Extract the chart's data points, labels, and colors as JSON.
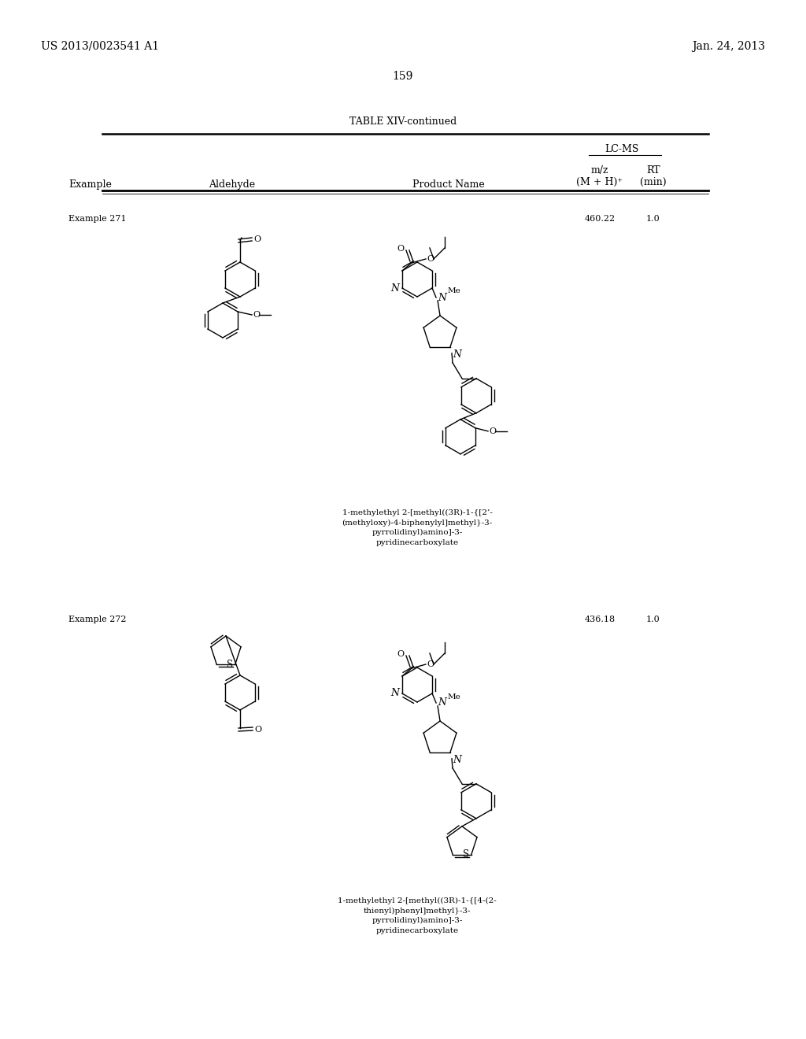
{
  "background_color": "#ffffff",
  "page_number": "159",
  "patent_number": "US 2013/0023541 A1",
  "patent_date": "Jan. 24, 2013",
  "table_title": "TABLE XIV-continued",
  "header_lcms": "LC-MS",
  "header_mz": "m/z",
  "header_rt": "RT",
  "header_mh": "(M + H)⁺",
  "header_min": "(min)",
  "col_example": "Example",
  "col_aldehyde": "Aldehyde",
  "col_product": "Product Name",
  "example271_label": "Example 271",
  "example271_mz": "460.22",
  "example271_rt": "1.0",
  "example271_product_name": "1-methylethyl 2-[methyl((3R)-1-{[2’-\n(methyloxy)-4-biphenylyl]methyl}-3-\npyrrolidinyl)amino]-3-\npyridinecarboxylate",
  "example272_label": "Example 272",
  "example272_mz": "436.18",
  "example272_rt": "1.0",
  "example272_product_name": "1-methylethyl 2-[methyl((3R)-1-{[4-(2-\nthienyl)phenyl]methyl}-3-\npyrrolidinyl)amino]-3-\npyridinecarboxylate",
  "font_size_header": 9,
  "font_size_body": 8,
  "font_size_page": 10,
  "font_size_table_title": 9
}
